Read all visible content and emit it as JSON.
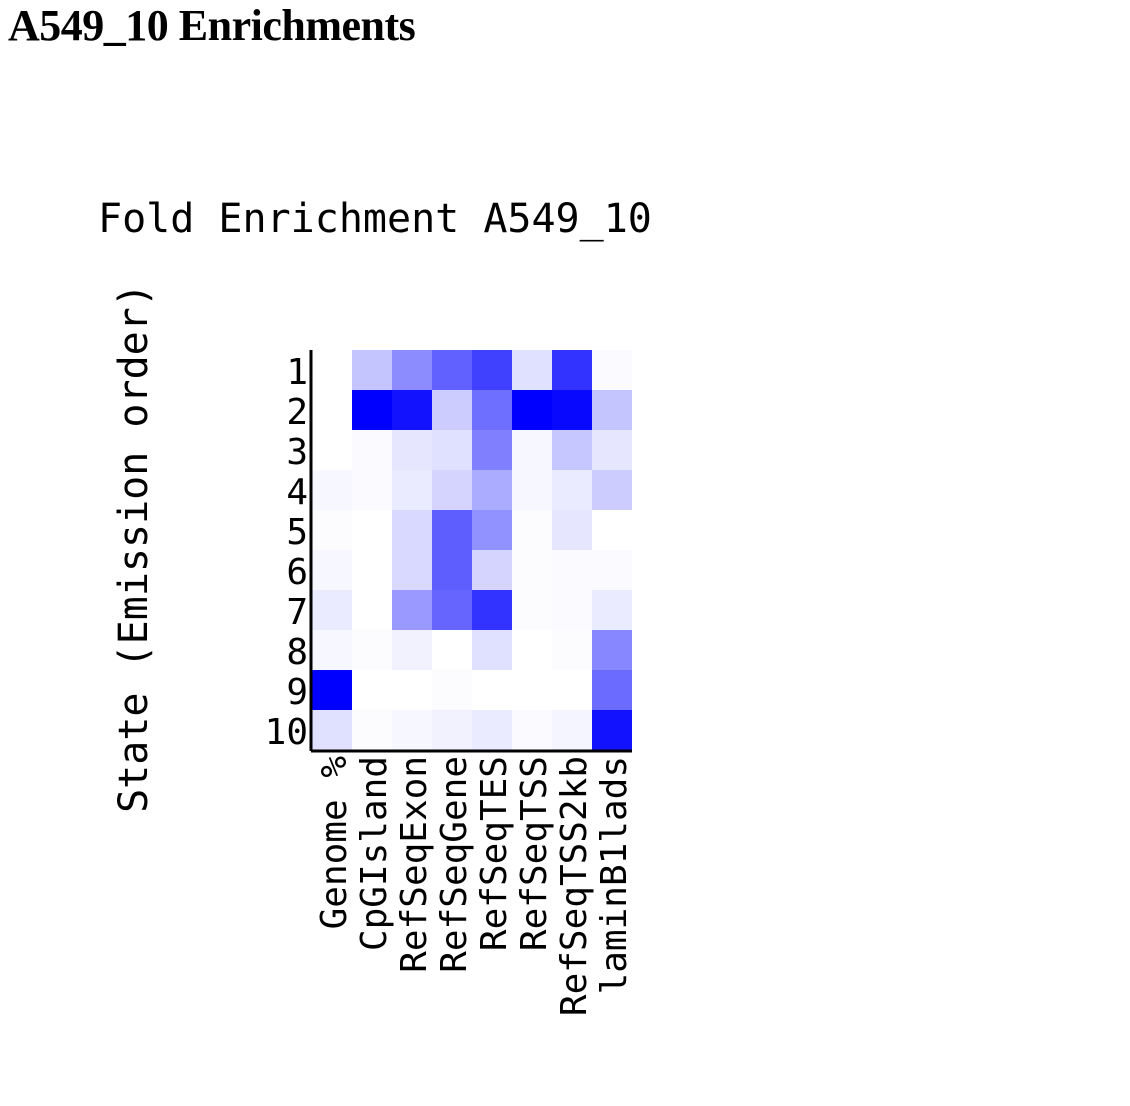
{
  "page": {
    "heading": "A549_10 Enrichments"
  },
  "colors": {
    "high": "#0000ff",
    "low": "#ffffff",
    "axis": "#000000"
  },
  "chart_data": {
    "type": "heatmap",
    "title": "Fold Enrichment A549_10",
    "ylabel": "State (Emission order)",
    "xlabel": "",
    "columns": [
      "Genome %",
      "CpGIsland",
      "RefSeqExon",
      "RefSeqGene",
      "RefSeqTES",
      "RefSeqTSS",
      "RefSeqTSS2kb",
      "laminB1lads"
    ],
    "rows": [
      "1",
      "2",
      "3",
      "4",
      "5",
      "6",
      "7",
      "8",
      "9",
      "10"
    ],
    "color_scale": "white-to-blue, normalized per column (0 = white, 1 = blue)",
    "values": [
      [
        0.0,
        0.23,
        0.45,
        0.62,
        0.75,
        0.12,
        0.8,
        0.02
      ],
      [
        0.0,
        1.0,
        0.93,
        0.2,
        0.57,
        1.0,
        0.97,
        0.23
      ],
      [
        0.0,
        0.02,
        0.1,
        0.12,
        0.5,
        0.03,
        0.22,
        0.1
      ],
      [
        0.03,
        0.02,
        0.08,
        0.17,
        0.33,
        0.03,
        0.08,
        0.2
      ],
      [
        0.01,
        0.0,
        0.15,
        0.63,
        0.43,
        0.01,
        0.1,
        0.0
      ],
      [
        0.03,
        0.0,
        0.15,
        0.63,
        0.17,
        0.01,
        0.02,
        0.02
      ],
      [
        0.08,
        0.0,
        0.4,
        0.6,
        0.8,
        0.01,
        0.02,
        0.08
      ],
      [
        0.03,
        0.01,
        0.05,
        0.0,
        0.12,
        0.0,
        0.01,
        0.47
      ],
      [
        1.0,
        0.0,
        0.0,
        0.01,
        0.0,
        0.0,
        0.0,
        0.58
      ],
      [
        0.12,
        0.01,
        0.03,
        0.05,
        0.08,
        0.02,
        0.04,
        0.93
      ]
    ]
  }
}
